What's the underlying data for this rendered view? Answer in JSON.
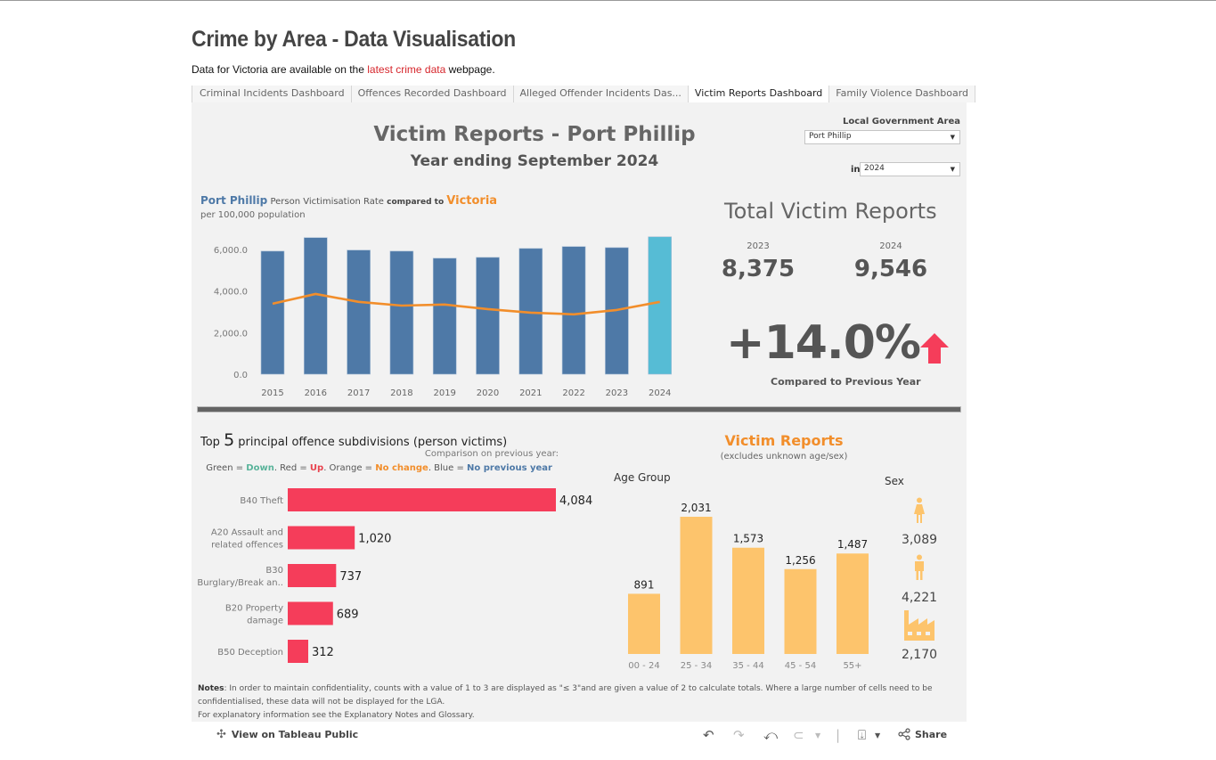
{
  "page": {
    "title": "Crime by Area - Data Visualisation",
    "intro_before": "Data for Victoria are available on the ",
    "intro_link": "latest crime data",
    "intro_after": " webpage."
  },
  "tabs": [
    {
      "label": "Criminal Incidents Dashboard",
      "active": false
    },
    {
      "label": "Offences Recorded Dashboard",
      "active": false
    },
    {
      "label": "Alleged Offender Incidents Das...",
      "active": false
    },
    {
      "label": "Victim Reports Dashboard",
      "active": true
    },
    {
      "label": "Family Violence Dashboard",
      "active": false
    }
  ],
  "dashboard": {
    "title": "Victim Reports - Port Phillip",
    "subtitle": "Year ending September 2024",
    "filters": {
      "lga_label": "Local Government Area",
      "lga_value": "Port Phillip",
      "year_prefix": "in",
      "year_value": "2024"
    },
    "rate_chart": {
      "title_area": "Port Phillip",
      "title_mid": " Person Victimisation Rate ",
      "title_compared": "compared to ",
      "title_state": "Victoria",
      "subtitle": "per 100,000 population"
    },
    "totals": {
      "title": "Total Victim Reports",
      "prev_year": "2023",
      "prev_value": "8,375",
      "curr_year": "2024",
      "curr_value": "9,546",
      "change": "+14.0%",
      "change_caption": "Compared to Previous Year",
      "change_icon": "arrow-up-icon"
    },
    "top5": {
      "title_before": "Top ",
      "title_num": "5",
      "title_after": " principal offence subdivisions (person victims)",
      "compare_line": "Comparison on previous year:",
      "legend": {
        "green": "Green = ",
        "down": "Down",
        "red": ". Red = ",
        "up": "Up",
        "orange": ". Orange = ",
        "nochange": "No change",
        "blue": ". Blue = ",
        "noprev": "No previous year"
      }
    },
    "victim_reports": {
      "title": "Victim Reports",
      "subtitle": "(excludes unknown age/sex)",
      "age_label": "Age Group",
      "sex_label": "Sex",
      "sex": [
        {
          "icon": "female-icon",
          "value": "3,089"
        },
        {
          "icon": "male-icon",
          "value": "4,221"
        },
        {
          "icon": "factory-icon",
          "value": "2,170"
        }
      ]
    },
    "notes": {
      "label": "Notes",
      "line1": ":  In order to maintain confidentiality, counts with a value of 1 to 3  are displayed as \"≤ 3\"and are given a value of 2 to calculate totals. Where a large number of cells need to be confidentialised, these data will not be displayed for the LGA.",
      "line2": "For explanatory information see the Explanatory Notes and Glossary."
    }
  },
  "toolbar": {
    "view_on": "View on Tableau Public",
    "share": "Share"
  },
  "colors": {
    "area_bar": "#4e79a7",
    "current_bar": "#56bcd5",
    "state_line": "#f28e2b",
    "up_red": "#f53d5a",
    "age_bar": "#fdc46c"
  },
  "chart_data": [
    {
      "type": "bar",
      "title": "Port Phillip Person Victimisation Rate compared to Victoria",
      "subtitle": "per 100,000 population",
      "categories": [
        "2015",
        "2016",
        "2017",
        "2018",
        "2019",
        "2020",
        "2021",
        "2022",
        "2023",
        "2024"
      ],
      "series": [
        {
          "name": "Port Phillip",
          "kind": "bar",
          "values": [
            5920,
            6570,
            5970,
            5920,
            5580,
            5620,
            6050,
            6140,
            6090,
            6610
          ]
        },
        {
          "name": "Victoria",
          "kind": "line",
          "values": [
            3390,
            3860,
            3480,
            3300,
            3350,
            3130,
            2960,
            2880,
            3090,
            3480
          ]
        }
      ],
      "yticks": [
        "0.0",
        "2,000.0",
        "4,000.0",
        "6,000.0"
      ],
      "ylim": [
        0,
        6700
      ],
      "highlight_category": "2024",
      "grid": false
    },
    {
      "type": "bar",
      "orientation": "horizontal",
      "title": "Top 5 principal offence subdivisions (person victims)",
      "categories": [
        [
          "B40 Theft"
        ],
        [
          "A20 Assault and",
          "related offences"
        ],
        [
          "B30",
          "Burglary/Break an.."
        ],
        [
          "B20 Property",
          "damage"
        ],
        [
          "B50 Deception"
        ]
      ],
      "values": [
        4084,
        1020,
        737,
        689,
        312
      ],
      "labels": [
        "4,084",
        "1,020",
        "737",
        "689",
        "312"
      ],
      "status": [
        "Up",
        "Up",
        "Up",
        "Up",
        "Up"
      ]
    },
    {
      "type": "bar",
      "title": "Victim Reports by Age Group",
      "categories": [
        "00 - 24",
        "25 - 34",
        "35 - 44",
        "45 - 54",
        "55+"
      ],
      "values": [
        891,
        2031,
        1573,
        1256,
        1487
      ],
      "labels": [
        "891",
        "2,031",
        "1,573",
        "1,256",
        "1,487"
      ]
    }
  ]
}
